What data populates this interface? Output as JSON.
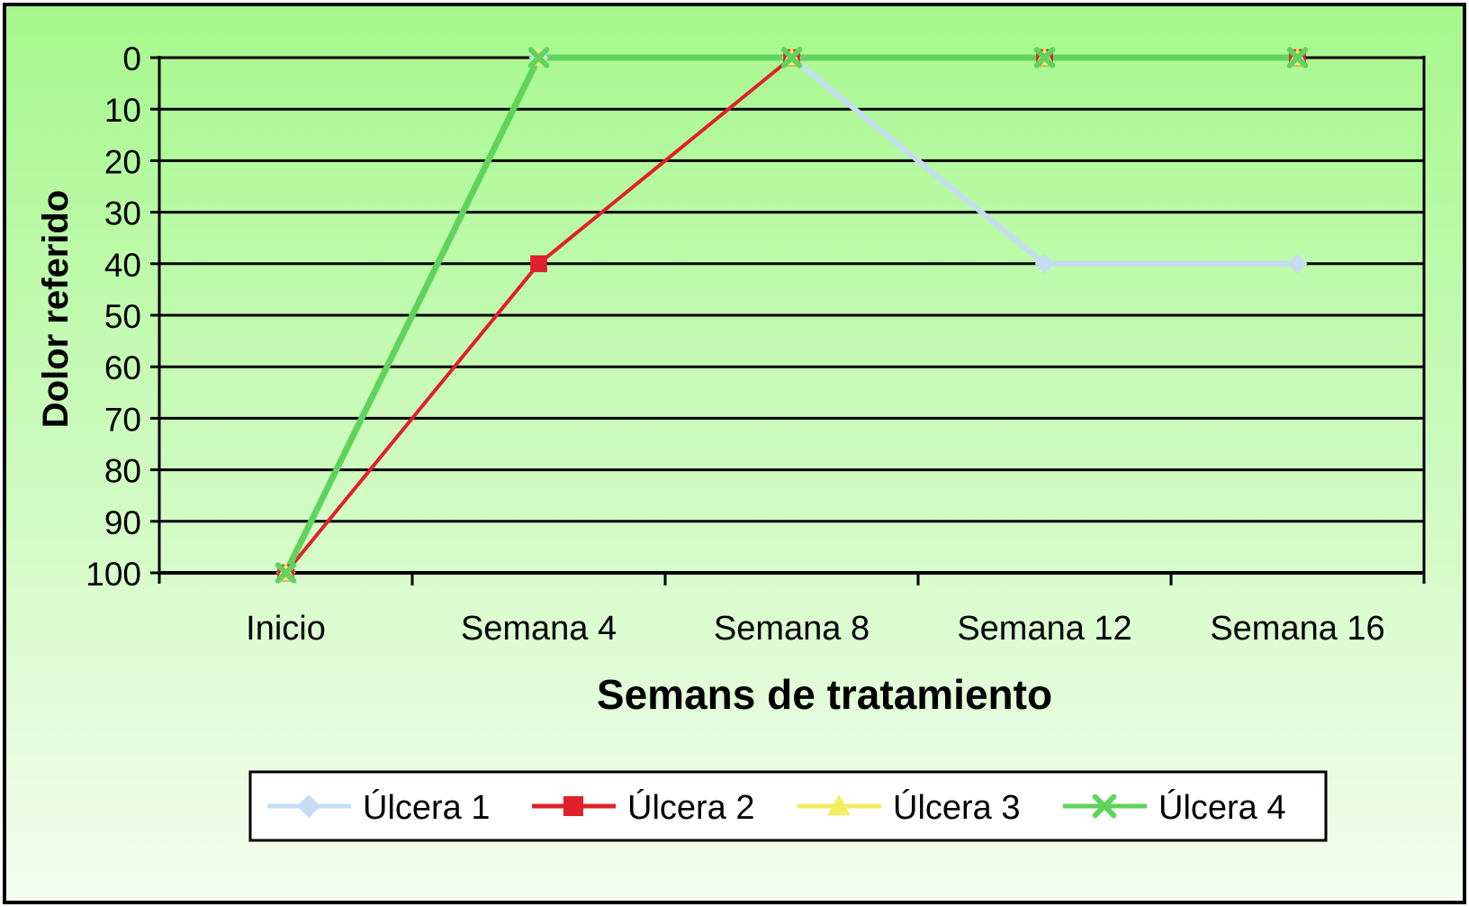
{
  "chart_data": {
    "type": "line",
    "title": "",
    "xlabel": "Semans de tratamiento",
    "ylabel": "Dolor referido",
    "categories": [
      "Inicio",
      "Semana 4",
      "Semana 8",
      "Semana 12",
      "Semana 16"
    ],
    "ylim": [
      0,
      100
    ],
    "y_axis_reversed": true,
    "y_ticks": [
      "0",
      "10",
      "20",
      "30",
      "40",
      "50",
      "60",
      "70",
      "80",
      "90",
      "100"
    ],
    "grid": true,
    "legend_position": "bottom",
    "series": [
      {
        "name": "Úlcera 1",
        "values": [
          100,
          0,
          0,
          40,
          40
        ],
        "color": "#c6dcf2",
        "marker": "diamond"
      },
      {
        "name": "Úlcera 2",
        "values": [
          100,
          40,
          0,
          0,
          0
        ],
        "color": "#e0202a",
        "marker": "square"
      },
      {
        "name": "Úlcera 3",
        "values": [
          100,
          0,
          0,
          0,
          0
        ],
        "color": "#f2ef60",
        "marker": "triangle"
      },
      {
        "name": "Úlcera 4",
        "values": [
          100,
          0,
          0,
          0,
          0
        ],
        "color": "#5fd35c",
        "marker": "x"
      }
    ],
    "background_gradient": [
      "#a6f88d",
      "#f4fdef"
    ]
  }
}
